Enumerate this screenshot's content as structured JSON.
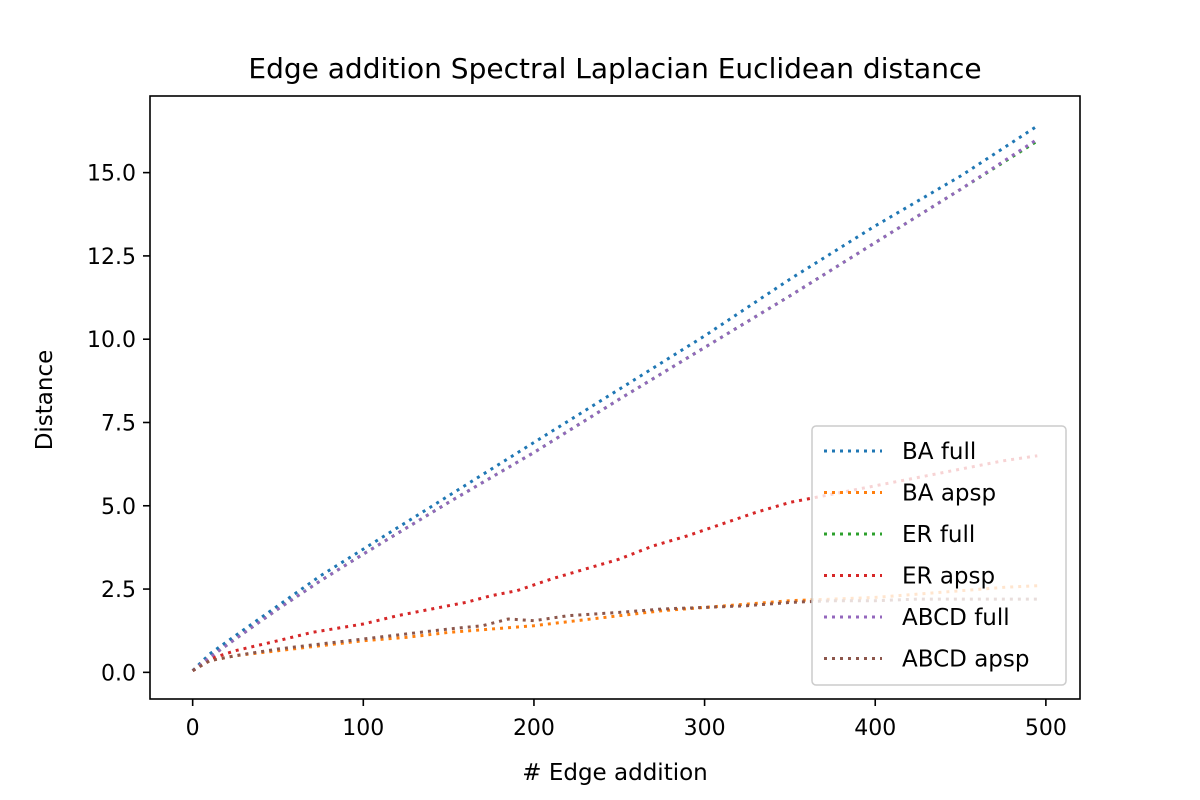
{
  "chart_data": {
    "type": "line",
    "title": "Edge addition Spectral Laplacian Euclidean distance",
    "xlabel": "# Edge addition",
    "ylabel": "Distance",
    "xlim": [
      -25,
      520
    ],
    "ylim": [
      -0.8,
      17.3
    ],
    "xticks": [
      0,
      100,
      200,
      300,
      400,
      500
    ],
    "yticks": [
      0.0,
      2.5,
      5.0,
      7.5,
      10.0,
      12.5,
      15.0
    ],
    "xtick_labels": [
      "0",
      "100",
      "200",
      "300",
      "400",
      "500"
    ],
    "ytick_labels": [
      "0.0",
      "2.5",
      "5.0",
      "7.5",
      "10.0",
      "12.5",
      "15.0"
    ],
    "grid": false,
    "legend_position": "lower right",
    "line_style": "dotted",
    "series": [
      {
        "name": "BA full",
        "color": "#1f77b4",
        "x": [
          0,
          10,
          25,
          50,
          75,
          100,
          150,
          200,
          250,
          300,
          350,
          400,
          450,
          495
        ],
        "y": [
          0.05,
          0.55,
          1.1,
          2.0,
          2.9,
          3.7,
          5.3,
          6.9,
          8.5,
          10.1,
          11.8,
          13.4,
          14.9,
          16.4
        ]
      },
      {
        "name": "BA apsp",
        "color": "#ff7f0e",
        "x": [
          0,
          10,
          25,
          50,
          75,
          100,
          125,
          150,
          175,
          200,
          225,
          250,
          275,
          300,
          325,
          350,
          375,
          400,
          425,
          450,
          475,
          495
        ],
        "y": [
          0.05,
          0.35,
          0.5,
          0.65,
          0.8,
          0.95,
          1.05,
          1.2,
          1.3,
          1.4,
          1.55,
          1.7,
          1.85,
          1.95,
          2.05,
          2.15,
          2.2,
          2.25,
          2.35,
          2.45,
          2.55,
          2.6
        ]
      },
      {
        "name": "ER full",
        "color": "#2ca02c",
        "x": [
          0,
          10,
          25,
          50,
          75,
          100,
          150,
          200,
          250,
          300,
          350,
          400,
          450,
          495
        ],
        "y": [
          0.05,
          0.45,
          1.0,
          1.9,
          2.75,
          3.55,
          5.1,
          6.6,
          8.2,
          9.75,
          11.3,
          12.9,
          14.5,
          15.95
        ]
      },
      {
        "name": "ER apsp",
        "color": "#d62728",
        "x": [
          0,
          10,
          25,
          50,
          70,
          100,
          120,
          140,
          160,
          175,
          190,
          210,
          230,
          250,
          270,
          290,
          310,
          330,
          350,
          375,
          400,
          425,
          450,
          475,
          495
        ],
        "y": [
          0.05,
          0.4,
          0.65,
          0.95,
          1.2,
          1.45,
          1.7,
          1.9,
          2.1,
          2.3,
          2.45,
          2.8,
          3.1,
          3.4,
          3.8,
          4.1,
          4.45,
          4.8,
          5.1,
          5.35,
          5.6,
          5.85,
          6.1,
          6.35,
          6.5
        ]
      },
      {
        "name": "ABCD full",
        "color": "#9467bd",
        "x": [
          0,
          10,
          25,
          50,
          75,
          100,
          150,
          200,
          250,
          300,
          350,
          400,
          450,
          495
        ],
        "y": [
          0.05,
          0.45,
          1.0,
          1.9,
          2.75,
          3.55,
          5.1,
          6.6,
          8.2,
          9.75,
          11.3,
          12.9,
          14.5,
          16.0
        ]
      },
      {
        "name": "ABCD apsp",
        "color": "#8c564b",
        "x": [
          0,
          10,
          25,
          50,
          75,
          100,
          125,
          150,
          170,
          185,
          200,
          220,
          250,
          275,
          300,
          325,
          350,
          375,
          400,
          425,
          450,
          475,
          495
        ],
        "y": [
          0.05,
          0.35,
          0.5,
          0.7,
          0.85,
          1.0,
          1.15,
          1.3,
          1.4,
          1.6,
          1.55,
          1.7,
          1.8,
          1.9,
          1.95,
          2.0,
          2.1,
          2.15,
          2.15,
          2.2,
          2.2,
          2.2,
          2.2
        ]
      }
    ]
  }
}
